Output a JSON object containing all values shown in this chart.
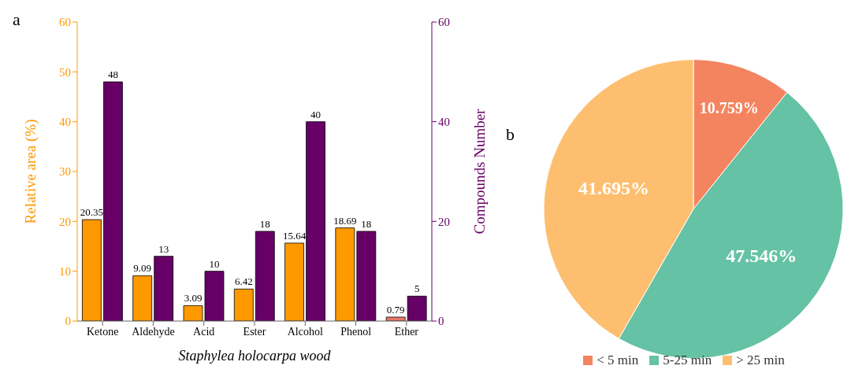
{
  "chart_data": [
    {
      "type": "bar",
      "annotations": [
        "a"
      ],
      "xlabel": "Staphylea holocarpa wood",
      "ylabel": "Relative area (%)",
      "y2label": "Compounds Number",
      "categories": [
        "Ketone",
        "Aldehyde",
        "Acid",
        "Ester",
        "Alcohol",
        "Phenol",
        "Ether"
      ],
      "series": [
        {
          "color": "#ff9900",
          "colors": [
            "#ff9900",
            "#ff9900",
            "#ff9900",
            "#ff9900",
            "#ff9900",
            "#ff9900",
            "#e8766c"
          ],
          "values": [
            20.35,
            9.09,
            3.09,
            6.42,
            15.64,
            18.69,
            0.79
          ]
        },
        {
          "color": "#660066",
          "axis": "y2",
          "values": [
            48,
            13,
            10,
            18,
            40,
            18,
            5
          ]
        }
      ],
      "ylim": [
        0,
        60
      ],
      "yticks": [
        0,
        10,
        20,
        30,
        40,
        50,
        60
      ],
      "y2lim": [
        0,
        60
      ],
      "y2ticks": [
        0,
        20,
        40,
        60
      ],
      "data_labels": true,
      "grid": false
    },
    {
      "type": "pie",
      "annotations": [
        "b"
      ],
      "categories": [
        "< 5 min",
        "5-25 min",
        "> 25 min"
      ],
      "values": [
        10.759,
        47.546,
        41.695
      ],
      "colors": [
        "#f4845f",
        "#66c2a5",
        "#fdbf6f"
      ],
      "value_labels": [
        "10.759%",
        "47.546%",
        "41.695%"
      ],
      "legend": "bottom"
    }
  ]
}
